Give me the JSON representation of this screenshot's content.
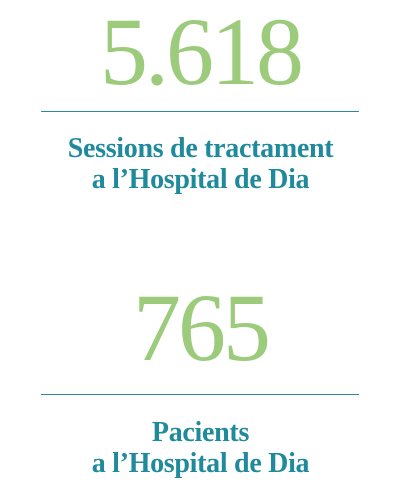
{
  "stats": [
    {
      "value": "5.618",
      "label_lines": [
        "Sessions de tractament",
        "a l’Hospital de Dia"
      ]
    },
    {
      "value": "765",
      "label_lines": [
        "Pacients",
        "a l’Hospital de Dia"
      ]
    }
  ]
}
